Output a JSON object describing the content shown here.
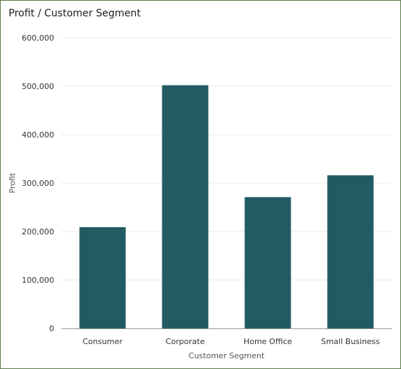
{
  "chart_data": {
    "type": "bar",
    "title": "Profit / Customer Segment",
    "xlabel": "Customer Segment",
    "ylabel": "Profit",
    "categories": [
      "Consumer",
      "Corporate",
      "Home Office",
      "Small Business"
    ],
    "values": [
      209000,
      502000,
      271000,
      316000
    ],
    "ylim": [
      0,
      600000
    ],
    "yticks": [
      "0",
      "100,000",
      "200,000",
      "300,000",
      "400,000",
      "500,000",
      "600,000"
    ],
    "grid": true,
    "legend": "none",
    "colors": {
      "bar": "#235b63",
      "grid": "#e8e8e8",
      "axis": "#999999",
      "border": "#5b7a4a"
    }
  }
}
